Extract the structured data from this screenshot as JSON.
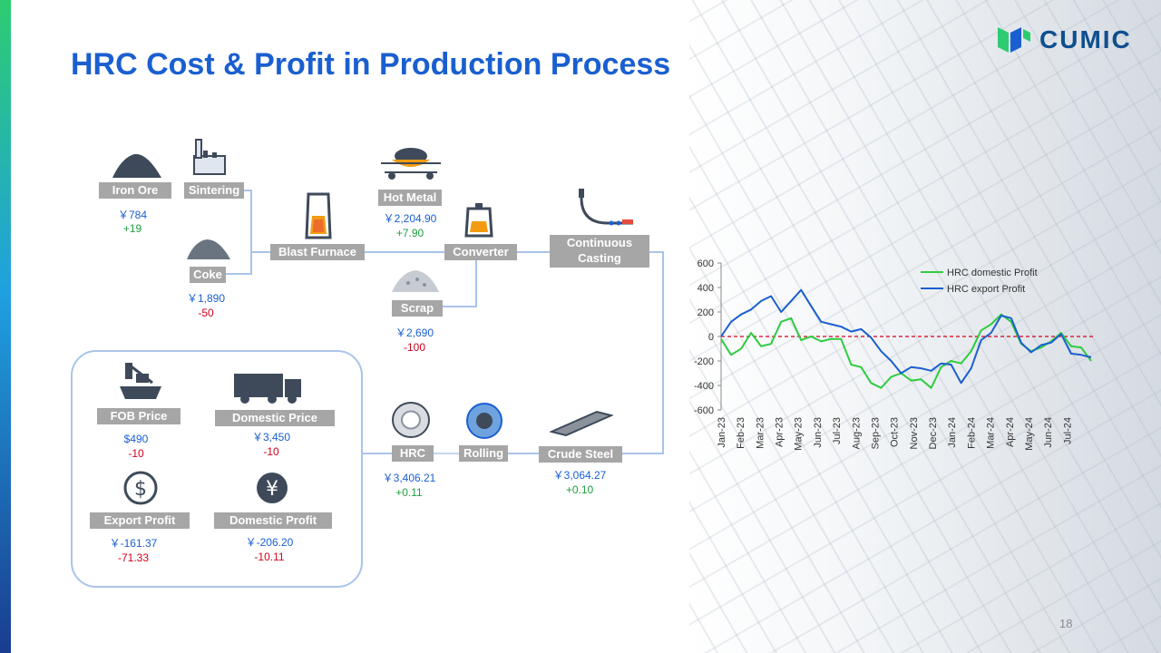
{
  "title": "HRC Cost & Profit in Production Process",
  "logo": {
    "text": "CUMIC"
  },
  "page_number": "18",
  "colors": {
    "accent": "#1a5fd0",
    "label_bg": "#a6a6a6",
    "positive": "#1e9e3e",
    "negative": "#d0021b",
    "connector": "#a9c4ea"
  },
  "process": {
    "iron_ore": {
      "label": "Iron Ore",
      "price": "￥784",
      "change": "+19"
    },
    "sintering": {
      "label": "Sintering"
    },
    "coke": {
      "label": "Coke",
      "price": "￥1,890",
      "change": "-50"
    },
    "blast_furnace": {
      "label": "Blast Furnace"
    },
    "hot_metal": {
      "label": "Hot Metal",
      "price": "￥2,204.90",
      "change": "+7.90"
    },
    "converter": {
      "label": "Converter"
    },
    "scrap": {
      "label": "Scrap",
      "price": "￥2,690",
      "change": "-100"
    },
    "continuous_casting": {
      "label_line1": "Continuous",
      "label_line2": "Casting"
    },
    "crude_steel": {
      "label": "Crude Steel",
      "price": "￥3,064.27",
      "change": "+0.10"
    },
    "rolling": {
      "label": "Rolling"
    },
    "hrc": {
      "label": "HRC",
      "price": "￥3,406.21",
      "change": "+0.11"
    }
  },
  "summary": {
    "fob_price": {
      "label": "FOB Price",
      "value": "$490",
      "change": "-10"
    },
    "domestic_price": {
      "label": "Domestic Price",
      "value": "￥3,450",
      "change": "-10"
    },
    "export_profit": {
      "label": "Export Profit",
      "value": "￥-161.37",
      "change": "-71.33"
    },
    "domestic_profit": {
      "label": "Domestic Profit",
      "value": "￥-206.20",
      "change": "-10.11"
    }
  },
  "chart_data": {
    "type": "line",
    "y_ticks": [
      "600",
      "400",
      "200",
      "0",
      "-200",
      "-400",
      "-600"
    ],
    "ylim": [
      -600,
      600
    ],
    "x_ticks": [
      "Jan-23",
      "Feb-23",
      "Mar-23",
      "Apr-23",
      "May-23",
      "Jun-23",
      "Jul-23",
      "Aug-23",
      "Sep-23",
      "Oct-23",
      "Nov-23",
      "Dec-23",
      "Jan-24",
      "Feb-24",
      "Mar-24",
      "Apr-24",
      "May-24",
      "Jun-24",
      "Jul-24"
    ],
    "reference_line": 0,
    "legend_position": "top-right",
    "series": [
      {
        "name": "HRC domestic Profit",
        "color": "#2ecc40",
        "values": [
          -20,
          -150,
          -100,
          30,
          -80,
          -60,
          120,
          150,
          -30,
          0,
          -40,
          -20,
          -20,
          -230,
          -250,
          -380,
          -420,
          -330,
          -300,
          -360,
          -350,
          -420,
          -250,
          -200,
          -220,
          -120,
          50,
          100,
          180,
          120,
          -60,
          -120,
          -90,
          -40,
          30,
          -80,
          -90,
          -200
        ]
      },
      {
        "name": "HRC export Profit",
        "color": "#1a5fd0",
        "values": [
          0,
          120,
          180,
          220,
          290,
          330,
          200,
          290,
          380,
          250,
          120,
          100,
          80,
          40,
          60,
          -10,
          -120,
          -200,
          -300,
          -250,
          -260,
          -280,
          -220,
          -230,
          -380,
          -260,
          -30,
          30,
          170,
          150,
          -50,
          -130,
          -70,
          -50,
          20,
          -140,
          -150,
          -170
        ]
      }
    ]
  }
}
